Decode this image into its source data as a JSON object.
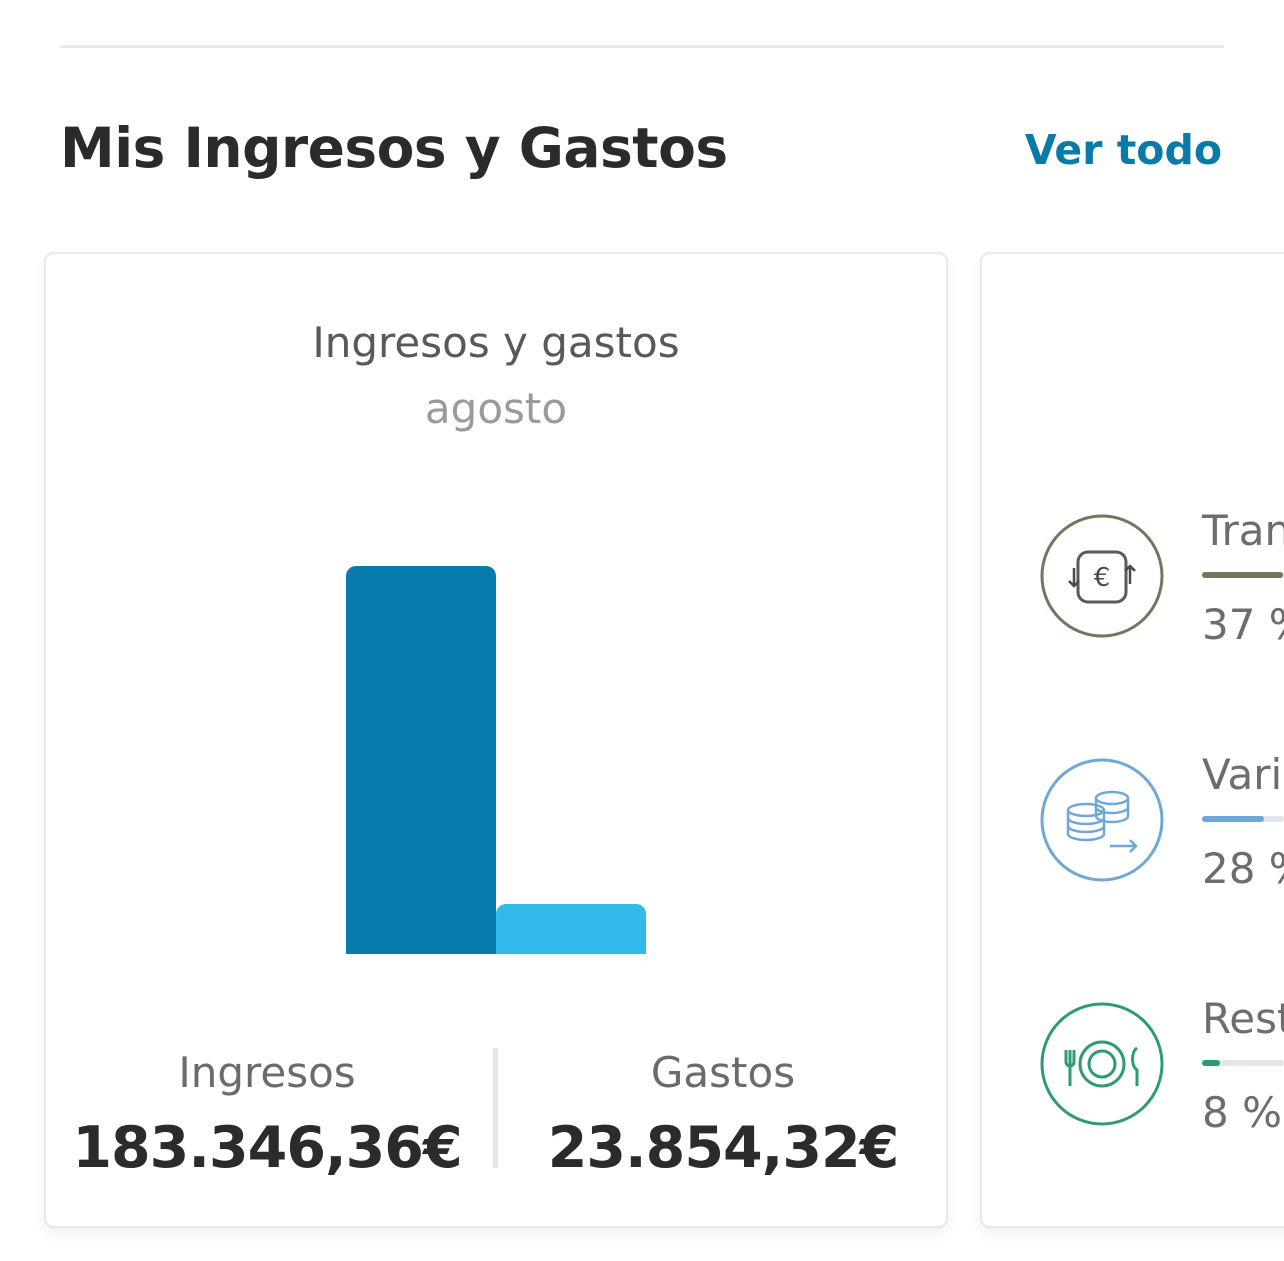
{
  "header": {
    "title": "Mis Ingresos y Gastos",
    "see_all": "Ver todo"
  },
  "summary_card": {
    "chart_title": "Ingresos y gastos",
    "chart_subtitle": "agosto",
    "income_label": "Ingresos",
    "income_value": "183.346,36€",
    "expense_label": "Gastos",
    "expense_value": "23.854,32€",
    "colors": {
      "income": "#077bab",
      "expense": "#31b9eb"
    }
  },
  "chart_data": {
    "type": "bar",
    "categories": [
      "Ingresos",
      "Gastos"
    ],
    "values": [
      183346.36,
      23854.32
    ]
  },
  "categories_card": {
    "items": [
      {
        "name": "Tran",
        "percent": "37 %",
        "share": 0.37,
        "color": "#6b7a5c",
        "icon": "euro-transfer-icon"
      },
      {
        "name": "Vari",
        "percent": "28 %",
        "share": 0.28,
        "color": "#6fa8d6",
        "icon": "coins-icon"
      },
      {
        "name": "Rest",
        "percent": "8 %",
        "share": 0.08,
        "color": "#2e9b73",
        "icon": "plate-cutlery-icon"
      }
    ]
  }
}
